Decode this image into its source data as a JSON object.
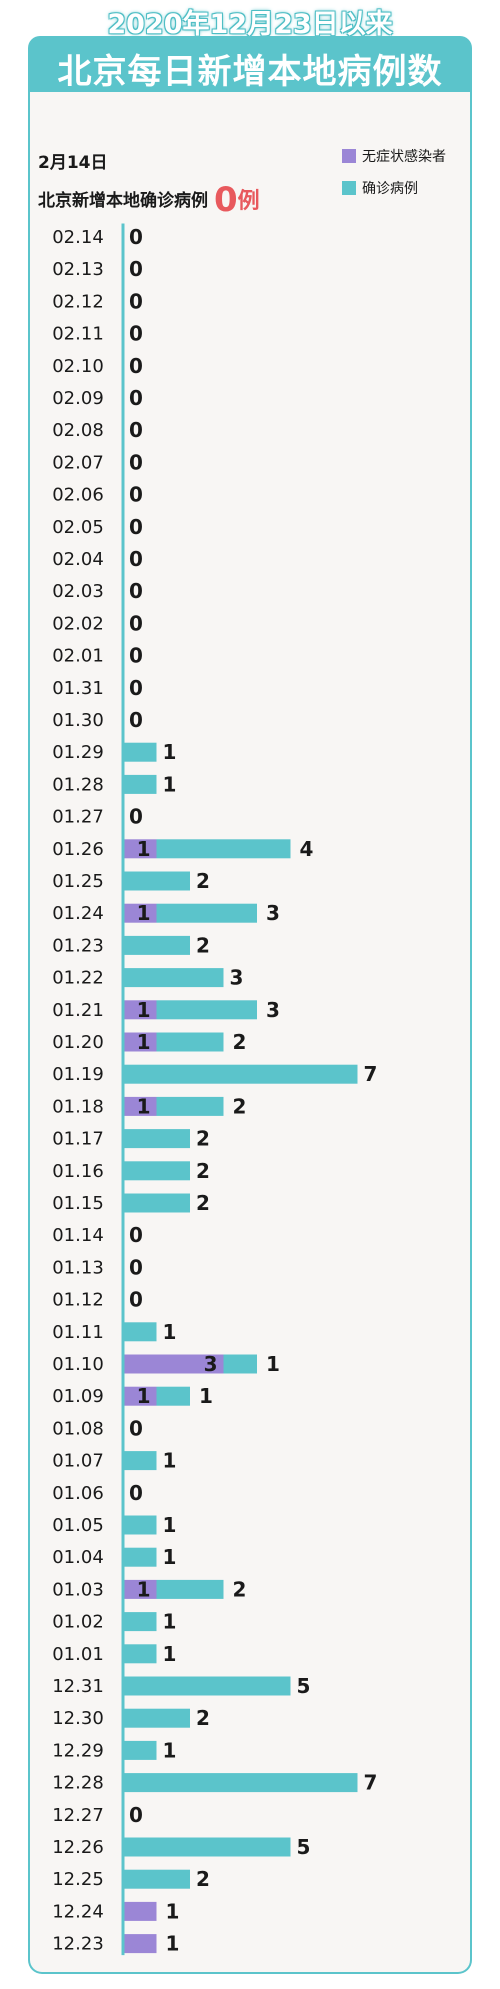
{
  "header": {
    "title_line1": "2020年12月23日以来",
    "title_line2": "北京每日新增本地病例数"
  },
  "summary": {
    "date": "2月14日",
    "label": "北京新增本地确诊病例",
    "value": "0",
    "unit": "例"
  },
  "legend": [
    {
      "label": "无症状感染者",
      "color": "#9b86d6"
    },
    {
      "label": "确诊病例",
      "color": "#5bc4cb"
    }
  ],
  "chart_data": {
    "type": "bar",
    "orientation": "horizontal",
    "stacked": true,
    "categories": [
      "02.14",
      "02.13",
      "02.12",
      "02.11",
      "02.10",
      "02.09",
      "02.08",
      "02.07",
      "02.06",
      "02.05",
      "02.04",
      "02.03",
      "02.02",
      "02.01",
      "01.31",
      "01.30",
      "01.29",
      "01.28",
      "01.27",
      "01.26",
      "01.25",
      "01.24",
      "01.23",
      "01.22",
      "01.21",
      "01.20",
      "01.19",
      "01.18",
      "01.17",
      "01.16",
      "01.15",
      "01.14",
      "01.13",
      "01.12",
      "01.11",
      "01.10",
      "01.09",
      "01.08",
      "01.07",
      "01.06",
      "01.05",
      "01.04",
      "01.03",
      "01.02",
      "01.01",
      "12.31",
      "12.30",
      "12.29",
      "12.28",
      "12.27",
      "12.26",
      "12.25",
      "12.24",
      "12.23"
    ],
    "series": [
      {
        "name": "无症状感染者",
        "color": "#9b86d6",
        "values": [
          0,
          0,
          0,
          0,
          0,
          0,
          0,
          0,
          0,
          0,
          0,
          0,
          0,
          0,
          0,
          0,
          0,
          0,
          0,
          1,
          0,
          1,
          0,
          0,
          1,
          1,
          0,
          1,
          0,
          0,
          0,
          0,
          0,
          0,
          0,
          3,
          1,
          0,
          0,
          0,
          0,
          0,
          1,
          0,
          0,
          0,
          0,
          0,
          0,
          0,
          0,
          0,
          1,
          1
        ]
      },
      {
        "name": "确诊病例",
        "color": "#5bc4cb",
        "values": [
          0,
          0,
          0,
          0,
          0,
          0,
          0,
          0,
          0,
          0,
          0,
          0,
          0,
          0,
          0,
          0,
          1,
          1,
          0,
          4,
          2,
          3,
          2,
          3,
          3,
          2,
          7,
          2,
          2,
          2,
          2,
          0,
          0,
          0,
          1,
          1,
          1,
          0,
          1,
          0,
          1,
          1,
          2,
          1,
          1,
          5,
          2,
          1,
          7,
          0,
          5,
          2,
          0,
          0
        ]
      }
    ],
    "highlight_category": "02.14",
    "highlight_color": "#e8595d",
    "axis_color": "#5bc4cb",
    "grid": false
  }
}
